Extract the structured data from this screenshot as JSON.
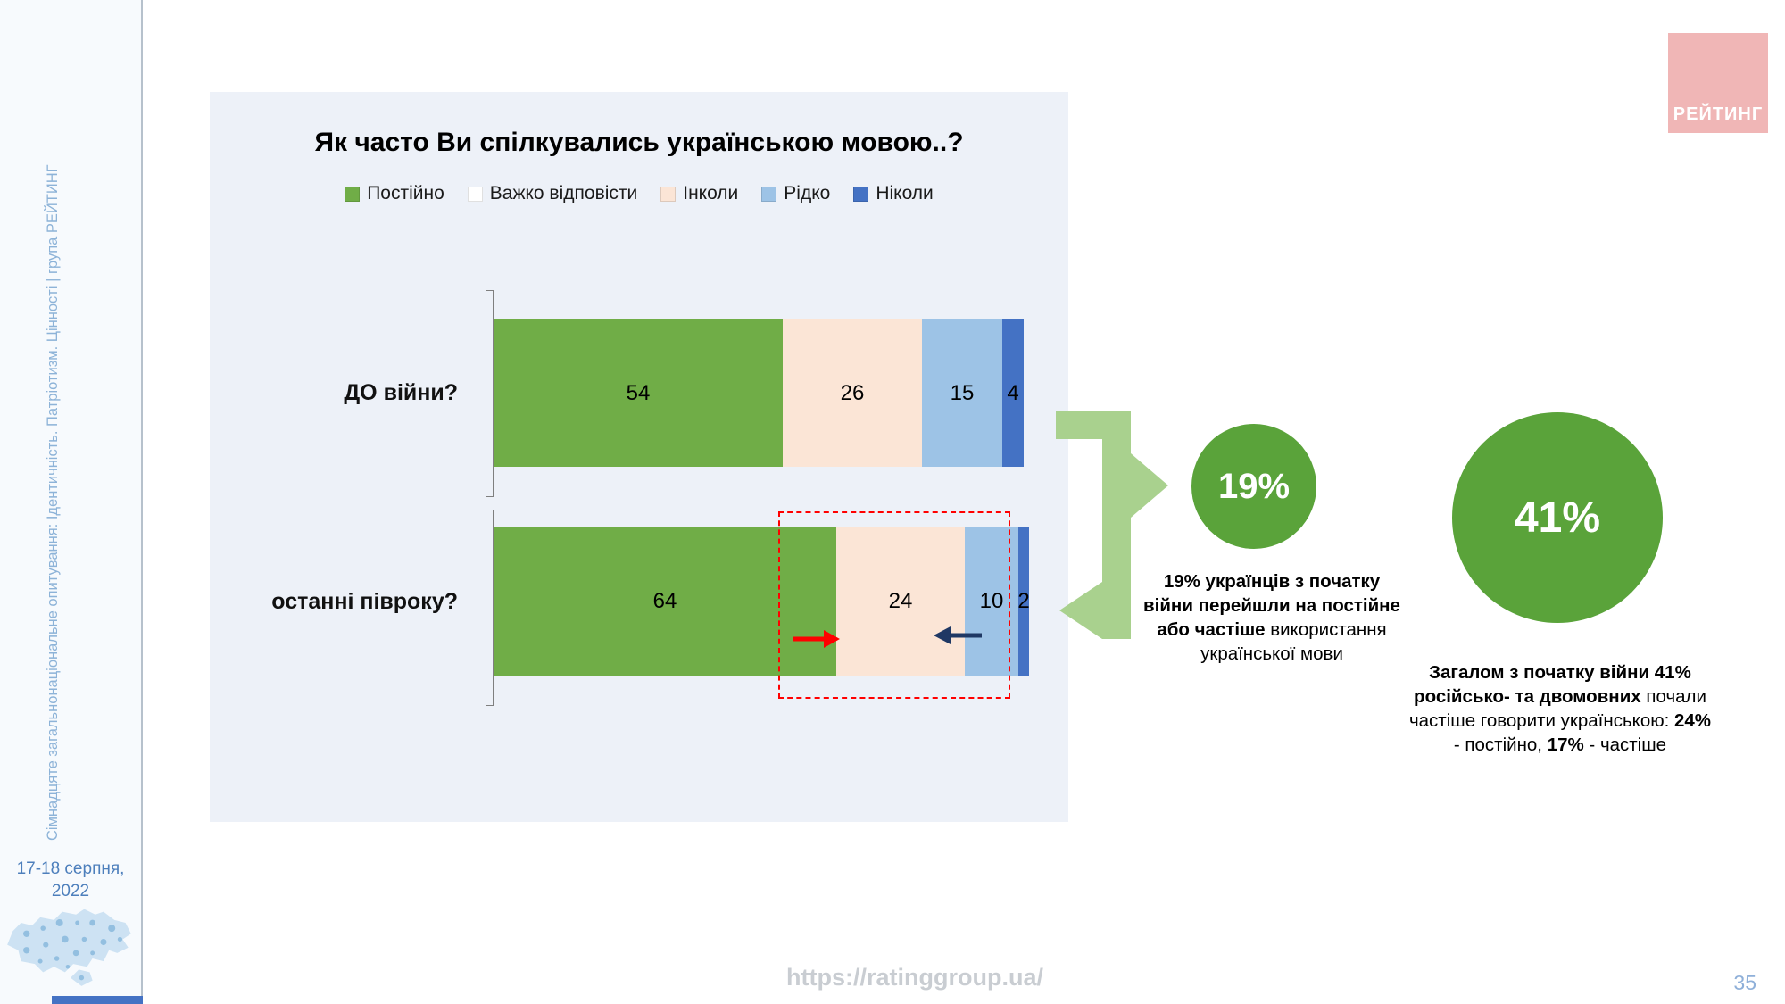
{
  "sidebar": {
    "vertical_text": "Сімнадцяте загальнонаціональне опитування: Ідентичність. Патріотизм. Цінності | група РЕЙТИНГ",
    "date_line1": "17-18 серпня,",
    "date_line2": "2022"
  },
  "logo": {
    "text": "РЕЙТИНГ",
    "bg_color": "#f0b6b6"
  },
  "chart_data": {
    "type": "bar",
    "orientation": "horizontal",
    "stacked": true,
    "title": "Як часто Ви спілкувались українською мовою..?",
    "categories": [
      "ДО війни?",
      "останні півроку?"
    ],
    "legend": [
      "Постійно",
      "Важко відповісти",
      "Інколи",
      "Рідко",
      "Ніколи"
    ],
    "colors": [
      "#70ad47",
      "#ffffff",
      "#fbe5d6",
      "#9dc3e6",
      "#4472c4"
    ],
    "series": [
      {
        "name": "Постійно",
        "values": [
          54,
          64
        ]
      },
      {
        "name": "Важко відповісти",
        "values": [
          0,
          0
        ]
      },
      {
        "name": "Інколи",
        "values": [
          26,
          24
        ]
      },
      {
        "name": "Рідко",
        "values": [
          15,
          10
        ]
      },
      {
        "name": "Ніколи",
        "values": [
          4,
          2
        ]
      }
    ],
    "xlim": [
      0,
      100
    ],
    "legend_position": "top",
    "grid": false
  },
  "annotations": {
    "highlight_color": "#ff0000",
    "red_arrow_color": "#ff0000",
    "navy_arrow_color": "#1f3864",
    "connector_color": "#a9d18e"
  },
  "callouts": {
    "circle_color": "#5aa33a",
    "small": {
      "value": "19%",
      "bold_text": "19% українців з початку війни перейшли на постійне або частіше",
      "normal_text": "використання української мови"
    },
    "large": {
      "value": "41%",
      "bold_text": "Загалом з початку війни 41% російсько- та двомовних",
      "normal_1": "почали частіше говорити українською: ",
      "bold_1": "24%",
      "normal_2": " - постійно, ",
      "bold_2": "17%",
      "normal_3": " - частіше"
    }
  },
  "footer": {
    "url": "https://ratinggroup.ua/",
    "page_number": "35"
  }
}
